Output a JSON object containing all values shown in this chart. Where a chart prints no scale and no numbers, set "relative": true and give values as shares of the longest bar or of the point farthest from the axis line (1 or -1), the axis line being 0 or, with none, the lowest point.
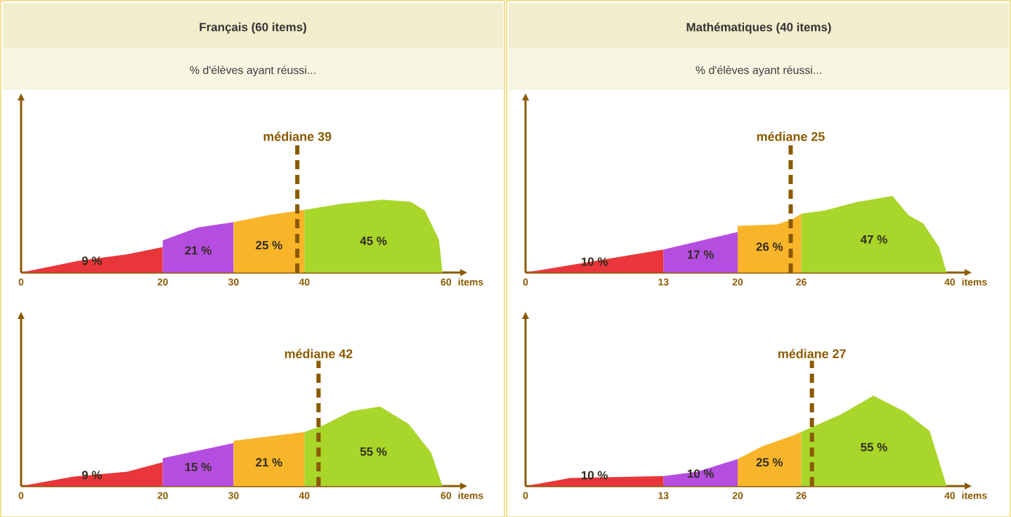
{
  "chart_data": [
    {
      "type": "area",
      "title": "Français (60 items)",
      "subtitle": "% d'élèves ayant réussi...",
      "relative": true,
      "xlim": [
        0,
        62
      ],
      "xticks": [
        0,
        20,
        30,
        40,
        60
      ],
      "xlabel": "items",
      "series": [
        {
          "color": "#e8363a",
          "x": [
            0,
            8,
            15,
            20
          ],
          "values": [
            0,
            0.16,
            0.25,
            0.35
          ]
        },
        {
          "color": "#b54ee0",
          "x": [
            20,
            25,
            30
          ],
          "values": [
            0.44,
            0.62,
            0.69
          ]
        },
        {
          "color": "#f9b52a",
          "x": [
            30,
            35,
            40
          ],
          "values": [
            0.69,
            0.79,
            0.86
          ]
        },
        {
          "color": "#a8d62a",
          "x": [
            40,
            45,
            51,
            55,
            57,
            59,
            59.5
          ],
          "values": [
            0.86,
            0.94,
            1.0,
            0.97,
            0.85,
            0.45,
            0
          ]
        }
      ],
      "ref_lines": [
        {
          "axis": "x",
          "value": 39,
          "label": "médiane 39",
          "color": "#8b5a00",
          "line_style": "dashed"
        }
      ],
      "annotations": [
        "9 %",
        "21 %",
        "25 %",
        "45 %"
      ]
    },
    {
      "type": "area",
      "title": "Mathématiques (40 items)",
      "subtitle": "% d'élèves ayant réussi...",
      "relative": true,
      "xlim": [
        0,
        41.4
      ],
      "xticks": [
        0,
        13,
        20,
        26,
        40
      ],
      "xlabel": "items",
      "series": [
        {
          "color": "#e8363a",
          "x": [
            0,
            13
          ],
          "values": [
            0,
            0.3
          ]
        },
        {
          "color": "#b54ee0",
          "x": [
            13,
            20
          ],
          "values": [
            0.3,
            0.53
          ]
        },
        {
          "color": "#f9b52a",
          "x": [
            20,
            23.7,
            25.2,
            26
          ],
          "values": [
            0.61,
            0.63,
            0.7,
            0.77
          ]
        },
        {
          "color": "#a8d62a",
          "x": [
            26,
            28.2,
            31.2,
            34.6,
            36.1,
            37.5,
            39,
            39.7
          ],
          "values": [
            0.77,
            0.81,
            0.92,
            1.0,
            0.75,
            0.64,
            0.33,
            0
          ]
        }
      ],
      "ref_lines": [
        {
          "axis": "x",
          "value": 25,
          "label": "médiane 25",
          "color": "#8b5a00",
          "line_style": "dashed"
        }
      ],
      "annotations": [
        "10 %",
        "17 %",
        "26 %",
        "47 %"
      ]
    },
    {
      "type": "area",
      "relative": true,
      "xlim": [
        0,
        62
      ],
      "xticks": [
        0,
        20,
        30,
        40,
        60
      ],
      "xlabel": "items",
      "series": [
        {
          "color": "#e8363a",
          "x": [
            0,
            7.4,
            15,
            20
          ],
          "values": [
            0,
            0.12,
            0.18,
            0.3
          ]
        },
        {
          "color": "#b54ee0",
          "x": [
            20,
            30
          ],
          "values": [
            0.35,
            0.54
          ]
        },
        {
          "color": "#f9b52a",
          "x": [
            30,
            40
          ],
          "values": [
            0.57,
            0.68
          ]
        },
        {
          "color": "#a8d62a",
          "x": [
            40,
            42.6,
            46.6,
            50.7,
            54.7,
            57.9,
            59.5
          ],
          "values": [
            0.68,
            0.76,
            0.94,
            1.0,
            0.78,
            0.42,
            0
          ]
        }
      ],
      "ref_lines": [
        {
          "axis": "x",
          "value": 42,
          "label": "médiane 42",
          "color": "#8b5a00",
          "line_style": "dashed"
        }
      ],
      "annotations": [
        "9 %",
        "15 %",
        "21 %",
        "55 %"
      ]
    },
    {
      "type": "area",
      "relative": true,
      "xlim": [
        0,
        41.4
      ],
      "xticks": [
        0,
        13,
        20,
        26,
        40
      ],
      "xlabel": "items",
      "series": [
        {
          "color": "#e8363a",
          "x": [
            0,
            4.2,
            13
          ],
          "values": [
            0,
            0.09,
            0.11
          ]
        },
        {
          "color": "#b54ee0",
          "x": [
            13,
            16.2,
            20
          ],
          "values": [
            0.11,
            0.16,
            0.3
          ]
        },
        {
          "color": "#f9b52a",
          "x": [
            20,
            22.3,
            25.2,
            26
          ],
          "values": [
            0.3,
            0.44,
            0.56,
            0.6
          ]
        },
        {
          "color": "#a8d62a",
          "x": [
            26,
            29.7,
            32.8,
            35.8,
            38.1,
            39.7
          ],
          "values": [
            0.6,
            0.79,
            1.0,
            0.82,
            0.61,
            0
          ]
        }
      ],
      "ref_lines": [
        {
          "axis": "x",
          "value": 27,
          "label": "médiane 27",
          "color": "#8b5a00",
          "line_style": "dashed"
        }
      ],
      "annotations": [
        "10 %",
        "10 %",
        "25 %",
        "55 %"
      ]
    }
  ]
}
